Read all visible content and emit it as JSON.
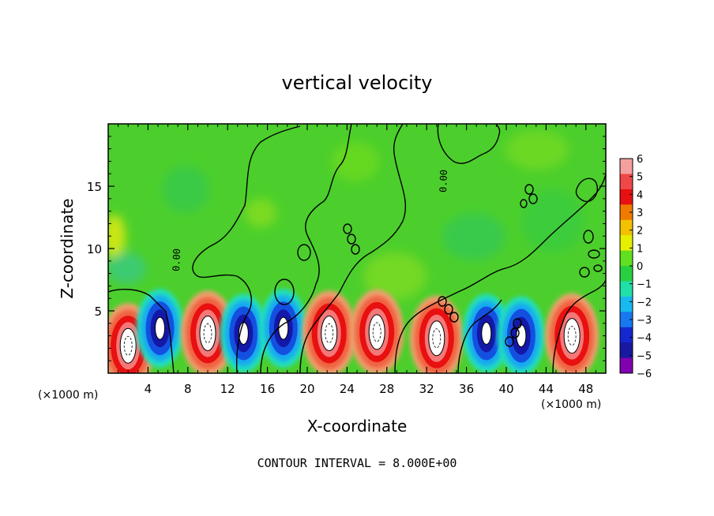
{
  "chart_data": {
    "type": "heatmap",
    "title": "vertical velocity",
    "xlabel": "X-coordinate",
    "ylabel": "Z-coordinate",
    "x_unit_label": "(×1000 m)",
    "x_ticks": [
      4,
      8,
      12,
      16,
      20,
      24,
      28,
      32,
      36,
      40,
      44,
      48
    ],
    "y_ticks": [
      5,
      10,
      15
    ],
    "xlim": [
      0,
      50
    ],
    "ylim": [
      0,
      20
    ],
    "colorbar": {
      "ticks": [
        6,
        5,
        4,
        3,
        2,
        1,
        0,
        -1,
        -2,
        -3,
        -4,
        -5,
        -6
      ],
      "colors": [
        "#f4a0a0",
        "#f04848",
        "#e81010",
        "#f07a00",
        "#f2c200",
        "#e4f000",
        "#60e020",
        "#28d040",
        "#20e0a8",
        "#18b8f0",
        "#1878f0",
        "#1428d0",
        "#1818a0",
        "#8000b0"
      ]
    },
    "contour_label": "0.00",
    "footer": "CONTOUR INTERVAL = 8.000E+00",
    "cells": [
      {
        "x": 2.0,
        "z": 2.2,
        "w": 1
      },
      {
        "x": 5.2,
        "z": 3.6,
        "w": -1
      },
      {
        "x": 10.0,
        "z": 3.2,
        "w": 1
      },
      {
        "x": 13.6,
        "z": 3.2,
        "w": -1
      },
      {
        "x": 17.6,
        "z": 3.6,
        "w": -1
      },
      {
        "x": 22.2,
        "z": 3.2,
        "w": 1
      },
      {
        "x": 27.0,
        "z": 3.3,
        "w": 1
      },
      {
        "x": 33.0,
        "z": 2.8,
        "w": 1
      },
      {
        "x": 38.0,
        "z": 3.2,
        "w": -1
      },
      {
        "x": 41.5,
        "z": 3.0,
        "w": -1
      },
      {
        "x": 46.6,
        "z": 3.0,
        "w": 1
      }
    ]
  }
}
